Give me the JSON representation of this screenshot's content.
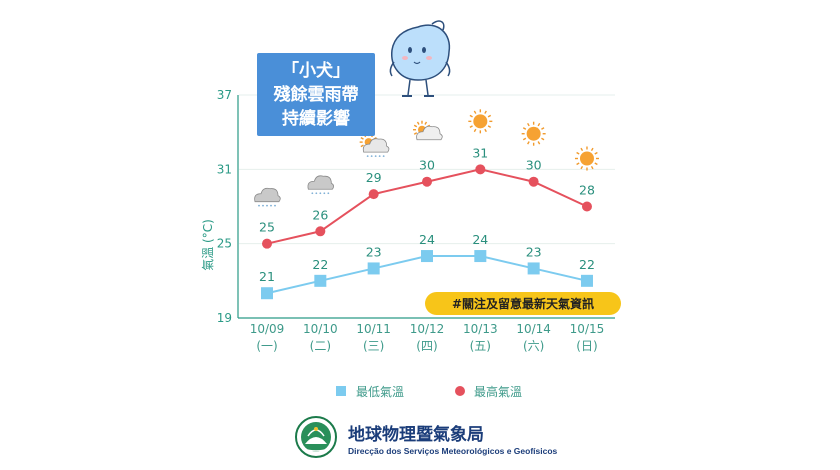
{
  "chart_data": {
    "type": "line",
    "title_lines": [
      "「小犬」",
      "殘餘雲雨帶",
      "持續影響"
    ],
    "ylabel": "氣溫 (°C)",
    "ylim": [
      19,
      37
    ],
    "yticks": [
      19,
      25,
      31,
      37
    ],
    "grid": true,
    "categories": [
      "10/09",
      "10/10",
      "10/11",
      "10/12",
      "10/13",
      "10/14",
      "10/15"
    ],
    "weekdays": [
      "(一)",
      "(二)",
      "(三)",
      "(四)",
      "(五)",
      "(六)",
      "(日)"
    ],
    "series": [
      {
        "name": "最低氣溫",
        "color": "#7ccbef",
        "marker": "square",
        "values": [
          21,
          22,
          23,
          24,
          24,
          23,
          22
        ]
      },
      {
        "name": "最高氣溫",
        "color": "#e5515d",
        "marker": "circle",
        "values": [
          25,
          26,
          29,
          30,
          31,
          30,
          28
        ]
      }
    ],
    "weather_icons": [
      "rain-cloud-icon",
      "rain-cloud-icon",
      "sun-cloud-rain-icon",
      "sun-cloud-icon",
      "sun-icon",
      "sun-icon",
      "sun-icon"
    ],
    "legend_position": "bottom",
    "annotation": "#關注及留意最新天氣資訊"
  },
  "colors": {
    "axis": "#2a9a86",
    "title_box": "#4a8fd8",
    "tag_bg": "#f7c519",
    "org": "#1b3d7a"
  },
  "footer": {
    "org_chinese": "地球物理暨氣象局",
    "org_portuguese": "Direcção dos Serviços Meteorológicos e Geofísicos"
  }
}
